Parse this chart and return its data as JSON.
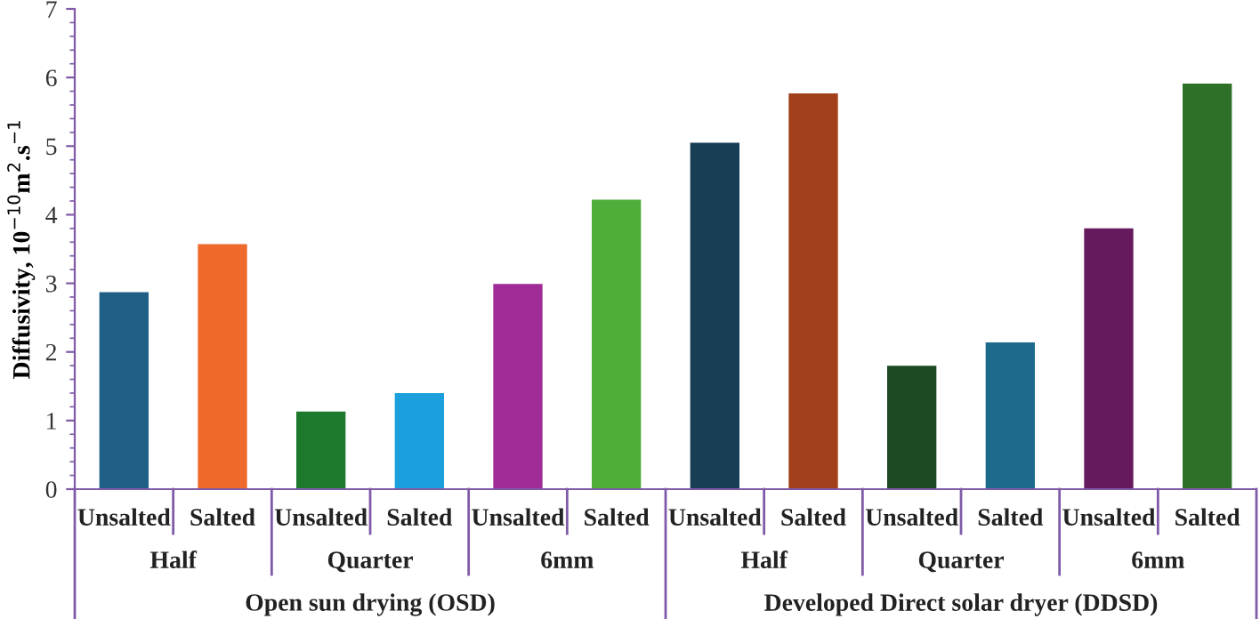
{
  "chart_data": {
    "type": "bar",
    "ylabel": "Diffusivity, 10$^{−10}$m$^{2}$.s$^{−1}$",
    "categories": [
      "Unsalted",
      "Salted",
      "Unsalted",
      "Salted",
      "Unsalted",
      "Salted",
      "Unsalted",
      "Salted",
      "Unsalted",
      "Salted",
      "Unsalted",
      "Salted"
    ],
    "values": [
      2.87,
      3.57,
      1.13,
      1.4,
      2.99,
      4.22,
      5.05,
      5.77,
      1.8,
      2.14,
      3.8,
      5.91
    ],
    "colors": [
      "#1f5f86",
      "#ee6a2c",
      "#1d7a2c",
      "#1ba0dd",
      "#a02c98",
      "#4fae3a",
      "#173e55",
      "#a2401c",
      "#1e4a22",
      "#1d6a8c",
      "#661a5e",
      "#2f7028"
    ],
    "annotations": [
      "Half",
      "Quarter",
      "6mm",
      "Half",
      "Quarter",
      "6mm",
      "Open sun drying (OSD)",
      "Developed Direct solar dryer (DDSD)"
    ],
    "ylim": [
      0,
      7
    ],
    "yticks": [
      0,
      1,
      2,
      3,
      4,
      5,
      6,
      7
    ],
    "grid": false,
    "legend": false
  }
}
